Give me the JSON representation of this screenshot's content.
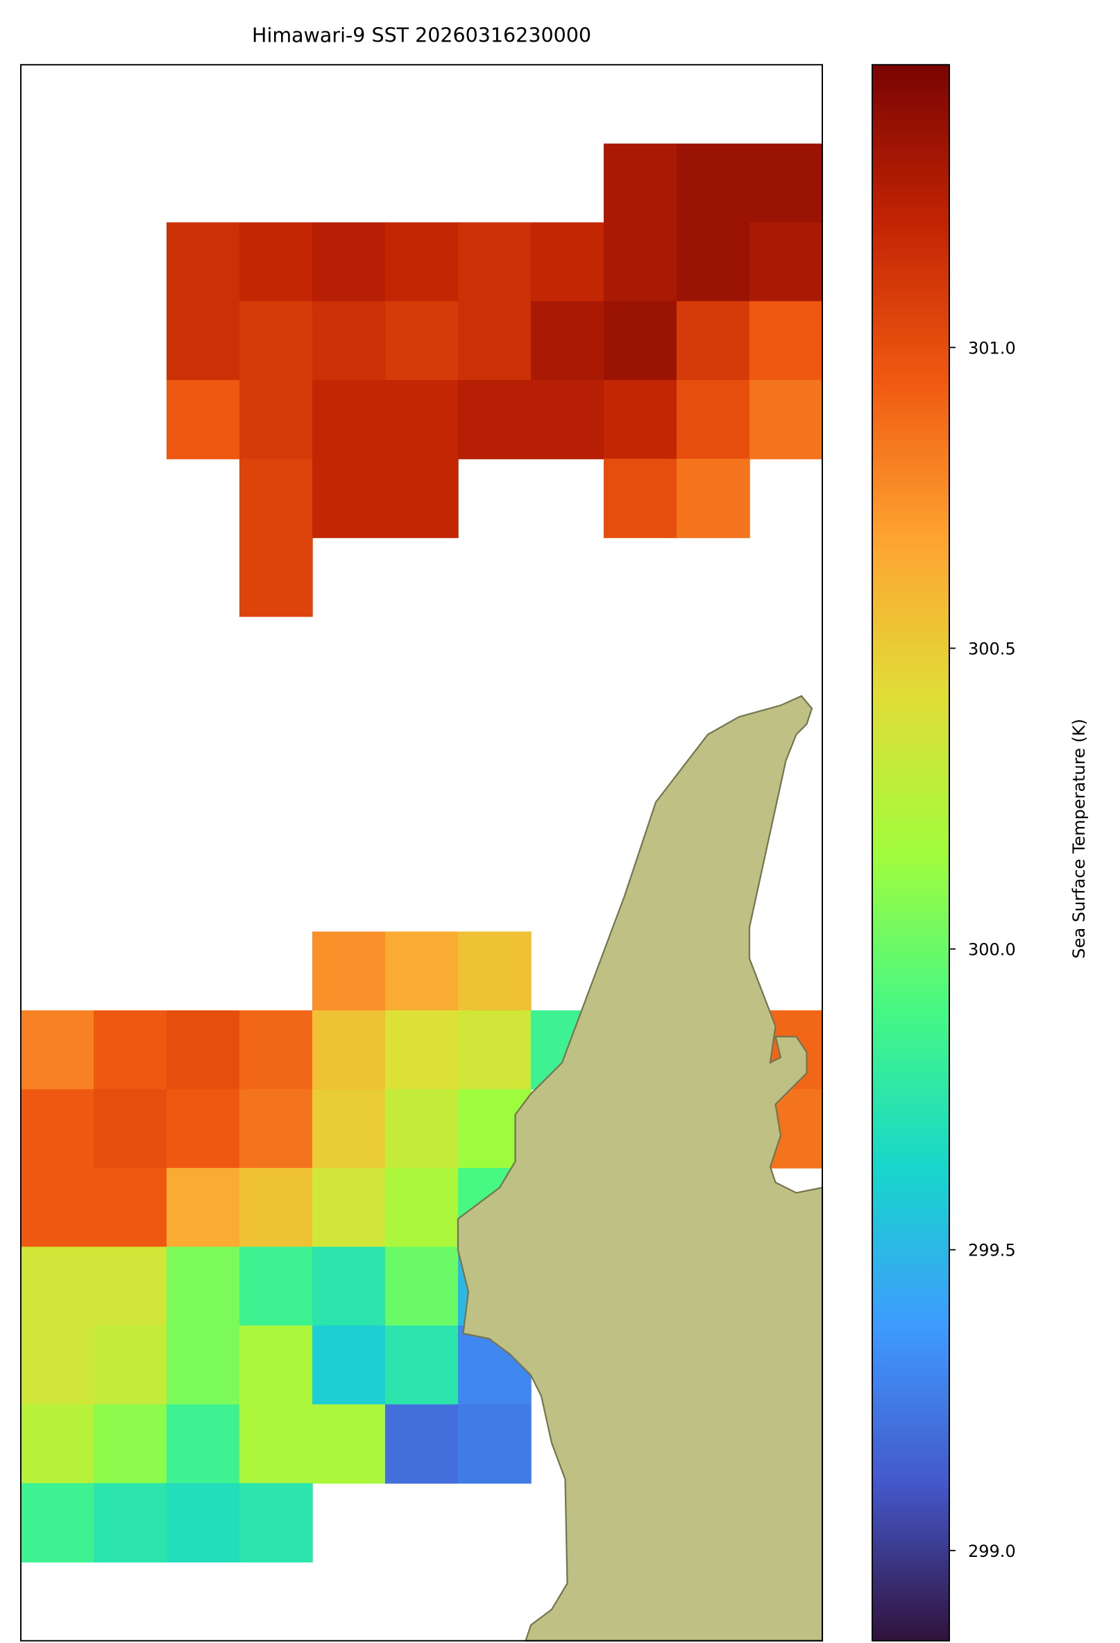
{
  "chart_data": {
    "type": "heatmap",
    "title": "Himawari-9 SST 20260316230000",
    "colorbar_label": "Sea Surface Temperature (K)",
    "colormap": "turbo",
    "clim": [
      298.85,
      301.47
    ],
    "cticks": [
      {
        "value": 299,
        "label": "299.0"
      },
      {
        "value": 299.5,
        "label": "299.5"
      },
      {
        "value": 300,
        "label": "300.0"
      },
      {
        "value": 300.5,
        "label": "300.5"
      },
      {
        "value": 301,
        "label": "301.0"
      }
    ],
    "values": [
      [
        null,
        null,
        null,
        null,
        null,
        null,
        null,
        null,
        null,
        null,
        null
      ],
      [
        null,
        null,
        null,
        null,
        null,
        null,
        null,
        null,
        301.3,
        301.35,
        301.35
      ],
      [
        null,
        null,
        301.15,
        301.2,
        301.25,
        301.2,
        301.15,
        301.2,
        301.3,
        301.35,
        301.3
      ],
      [
        null,
        null,
        301.15,
        301.1,
        301.15,
        301.1,
        301.15,
        301.3,
        301.35,
        301.1,
        300.95
      ],
      [
        null,
        null,
        300.95,
        301.1,
        301.2,
        301.2,
        301.25,
        301.25,
        301.2,
        301.0,
        300.85
      ],
      [
        null,
        null,
        null,
        301.05,
        301.2,
        301.2,
        null,
        null,
        301.0,
        300.85,
        null
      ],
      [
        null,
        null,
        null,
        301.05,
        null,
        null,
        null,
        null,
        null,
        null,
        null
      ],
      [
        null,
        null,
        null,
        null,
        null,
        null,
        null,
        null,
        null,
        null,
        null
      ],
      [
        null,
        null,
        null,
        null,
        null,
        null,
        null,
        null,
        null,
        null,
        null
      ],
      [
        null,
        null,
        null,
        null,
        null,
        null,
        null,
        null,
        null,
        null,
        null
      ],
      [
        null,
        null,
        null,
        null,
        null,
        null,
        null,
        null,
        null,
        null,
        null
      ],
      [
        null,
        null,
        null,
        null,
        300.75,
        300.65,
        300.55,
        null,
        null,
        null,
        null
      ],
      [
        300.8,
        300.95,
        301.0,
        300.9,
        300.55,
        300.4,
        300.35,
        299.85,
        null,
        null,
        300.9
      ],
      [
        300.95,
        301.0,
        300.95,
        300.85,
        300.5,
        300.3,
        300.15,
        null,
        null,
        null,
        300.85
      ],
      [
        300.95,
        300.95,
        300.65,
        300.55,
        300.35,
        300.2,
        299.9,
        null,
        null,
        null,
        null
      ],
      [
        300.35,
        300.35,
        300.05,
        299.85,
        299.75,
        300.0,
        299.5,
        null,
        null,
        null,
        null
      ],
      [
        300.35,
        300.3,
        300.05,
        300.2,
        299.6,
        299.75,
        299.3,
        null,
        null,
        null,
        null
      ],
      [
        300.25,
        300.1,
        299.85,
        300.2,
        300.2,
        299.2,
        299.25,
        null,
        null,
        null,
        null
      ],
      [
        299.85,
        299.75,
        299.7,
        299.75,
        null,
        null,
        null,
        null,
        null,
        null,
        null
      ],
      [
        null,
        null,
        null,
        null,
        null,
        null,
        null,
        null,
        null,
        null,
        null
      ]
    ]
  }
}
